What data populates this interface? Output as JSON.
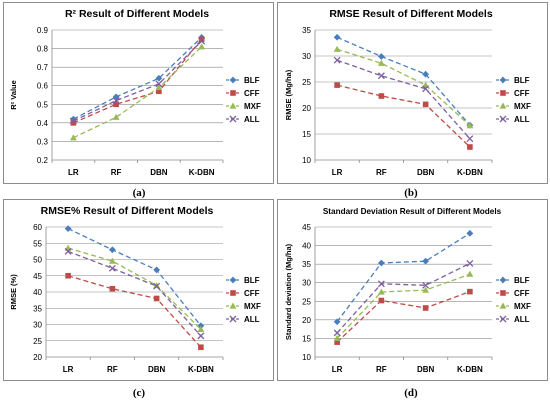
{
  "panel_labels": [
    "(a)",
    "(b)",
    "(c)",
    "(d)"
  ],
  "colors": {
    "BLF": "#4a7ebb",
    "CFF": "#be4b48",
    "MXF": "#98b954",
    "ALL": "#7d60a0"
  },
  "chart_data": [
    {
      "type": "line",
      "title": "R² Result of Different Models",
      "ylabel": "R² Value",
      "xlabel": "",
      "categories": [
        "LR",
        "RF",
        "DBN",
        "K-DBN"
      ],
      "ylim": [
        0.2,
        0.9
      ],
      "yticks": [
        "0.2",
        "0.3",
        "0.4",
        "0.5",
        "0.6",
        "0.7",
        "0.8",
        "0.9"
      ],
      "grid": true,
      "legend": "right",
      "series": [
        {
          "name": "BLF",
          "values": [
            0.42,
            0.54,
            0.64,
            0.86
          ]
        },
        {
          "name": "CFF",
          "values": [
            0.4,
            0.5,
            0.57,
            0.85
          ]
        },
        {
          "name": "MXF",
          "values": [
            0.32,
            0.43,
            0.59,
            0.81
          ]
        },
        {
          "name": "ALL",
          "values": [
            0.41,
            0.52,
            0.61,
            0.84
          ]
        }
      ]
    },
    {
      "type": "line",
      "title": "RMSE Result of Different Models",
      "ylabel": "RMSE  (Mg/ha)",
      "xlabel": "",
      "categories": [
        "LR",
        "RF",
        "DBN",
        "K-DBN"
      ],
      "ylim": [
        10,
        35
      ],
      "yticks": [
        "10",
        "15",
        "20",
        "25",
        "30",
        "35"
      ],
      "grid": true,
      "legend": "right",
      "series": [
        {
          "name": "BLF",
          "values": [
            33.6,
            29.9,
            26.5,
            16.7
          ]
        },
        {
          "name": "CFF",
          "values": [
            24.4,
            22.3,
            20.7,
            12.5
          ]
        },
        {
          "name": "MXF",
          "values": [
            31.3,
            28.6,
            24.4,
            16.6
          ]
        },
        {
          "name": "ALL",
          "values": [
            29.2,
            26.2,
            23.7,
            14.1
          ]
        }
      ]
    },
    {
      "type": "line",
      "title": "RMSE% Result of Different Models",
      "ylabel": "RMSE  (%)",
      "xlabel": "",
      "categories": [
        "LR",
        "RF",
        "DBN",
        "K-DBN"
      ],
      "ylim": [
        20,
        60
      ],
      "yticks": [
        "20",
        "25",
        "30",
        "35",
        "40",
        "45",
        "50",
        "55",
        "60"
      ],
      "grid": true,
      "legend": "right",
      "series": [
        {
          "name": "BLF",
          "values": [
            59.5,
            53.0,
            46.8,
            29.6
          ]
        },
        {
          "name": "CFF",
          "values": [
            45.0,
            41.0,
            38.0,
            23.0
          ]
        },
        {
          "name": "MXF",
          "values": [
            53.5,
            49.5,
            42.0,
            28.5
          ]
        },
        {
          "name": "ALL",
          "values": [
            52.5,
            47.3,
            41.8,
            26.5
          ]
        }
      ]
    },
    {
      "type": "line",
      "title": "Standard Deviation Result of Different Models",
      "ylabel": "Standard deviation  (Mg/ha)",
      "xlabel": "",
      "categories": [
        "LR",
        "RF",
        "DBN",
        "K-DBN"
      ],
      "ylim": [
        10,
        45
      ],
      "yticks": [
        "10",
        "15",
        "20",
        "25",
        "30",
        "35",
        "40",
        "45"
      ],
      "grid": true,
      "legend": "right",
      "series": [
        {
          "name": "BLF",
          "values": [
            19.5,
            35.3,
            35.8,
            43.3
          ]
        },
        {
          "name": "CFF",
          "values": [
            14.0,
            25.2,
            23.2,
            27.6
          ]
        },
        {
          "name": "MXF",
          "values": [
            15.0,
            27.5,
            28.0,
            32.3
          ]
        },
        {
          "name": "ALL",
          "values": [
            16.5,
            29.7,
            29.3,
            35.2
          ]
        }
      ]
    }
  ]
}
